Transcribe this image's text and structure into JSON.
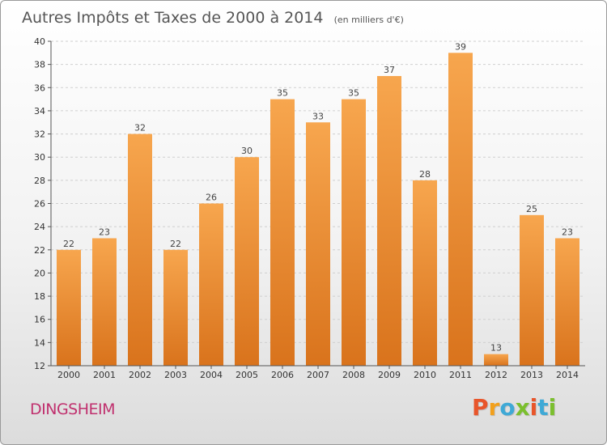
{
  "chart_data": {
    "type": "bar",
    "title": "Autres Impôts et Taxes de 2000 à 2014",
    "unit_note": "(en milliers d'€)",
    "categories": [
      "2000",
      "2001",
      "2002",
      "2003",
      "2004",
      "2005",
      "2006",
      "2007",
      "2008",
      "2009",
      "2010",
      "2011",
      "2012",
      "2013",
      "2014"
    ],
    "values": [
      22,
      23,
      32,
      22,
      26,
      30,
      35,
      33,
      35,
      37,
      28,
      39,
      13,
      25,
      23
    ],
    "ylim": [
      12,
      40
    ],
    "yticks": [
      12,
      14,
      16,
      18,
      20,
      22,
      24,
      26,
      28,
      30,
      32,
      34,
      36,
      38,
      40
    ],
    "grid": true,
    "bar_color_top": "#f7a64e",
    "bar_color_bottom": "#d9731c"
  },
  "footer": {
    "commune": "DINGSHEIM",
    "brand": [
      "P",
      "r",
      "o",
      "x",
      "i",
      "t",
      "i"
    ],
    "brand_colors": [
      "#e8552a",
      "#f2a01c",
      "#3fa9d6",
      "#7bbf2e",
      "#e8552a",
      "#3fa9d6",
      "#7bbf2e"
    ]
  }
}
